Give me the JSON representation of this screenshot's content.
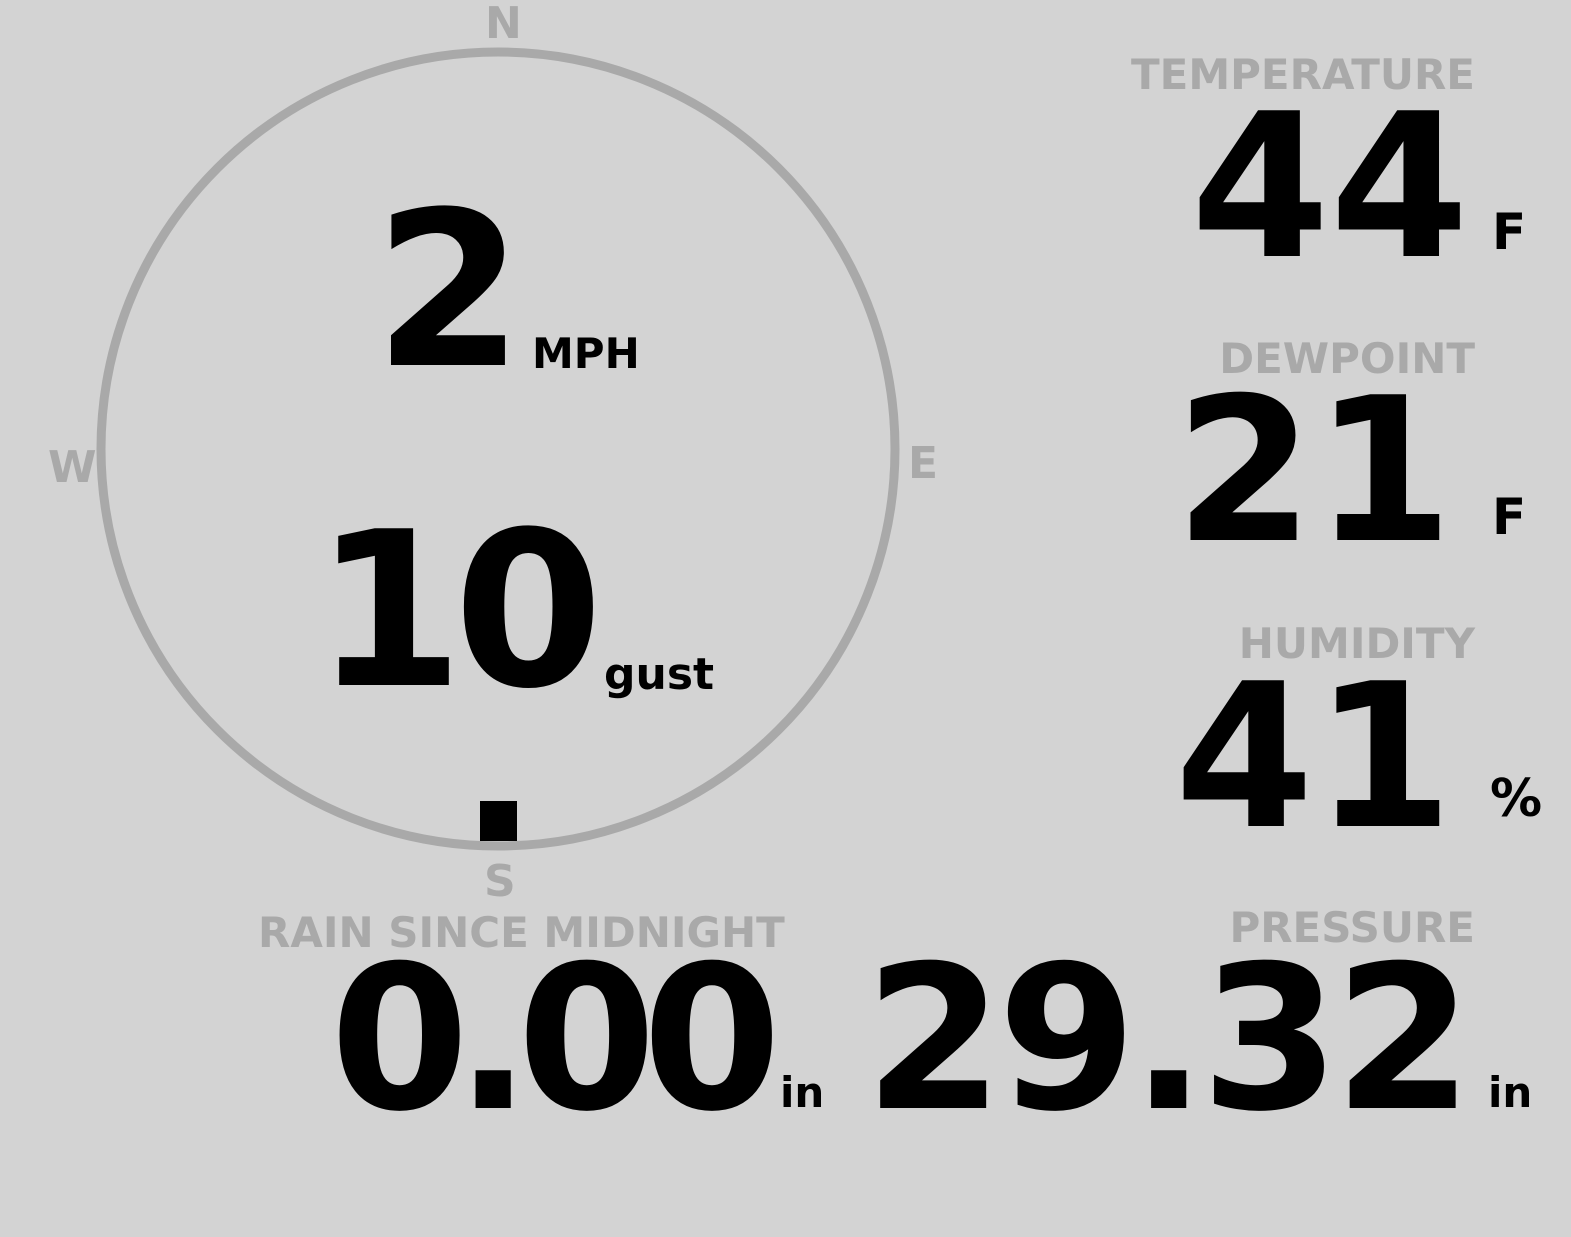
{
  "compass": {
    "north": "N",
    "south": "S",
    "east": "E",
    "west": "W",
    "wind_direction_degrees": 180,
    "colors": {
      "ring": "#a9a9a9",
      "pointer": "#000000"
    }
  },
  "wind": {
    "speed": "2",
    "speed_unit": "MPH",
    "gust": "10",
    "gust_unit": "gust"
  },
  "temperature": {
    "label": "TEMPERATURE",
    "value": "44",
    "unit": "F"
  },
  "dewpoint": {
    "label": "DEWPOINT",
    "value": "21",
    "unit": "F"
  },
  "humidity": {
    "label": "HUMIDITY",
    "value": "41",
    "unit": "%"
  },
  "rain": {
    "label": "RAIN SINCE MIDNIGHT",
    "value": "0.00",
    "unit": "in"
  },
  "pressure": {
    "label": "PRESSURE",
    "value": "29.32",
    "unit": "in"
  },
  "colors": {
    "background": "#d3d3d3",
    "label": "#a9a9a9",
    "value": "#000000"
  }
}
